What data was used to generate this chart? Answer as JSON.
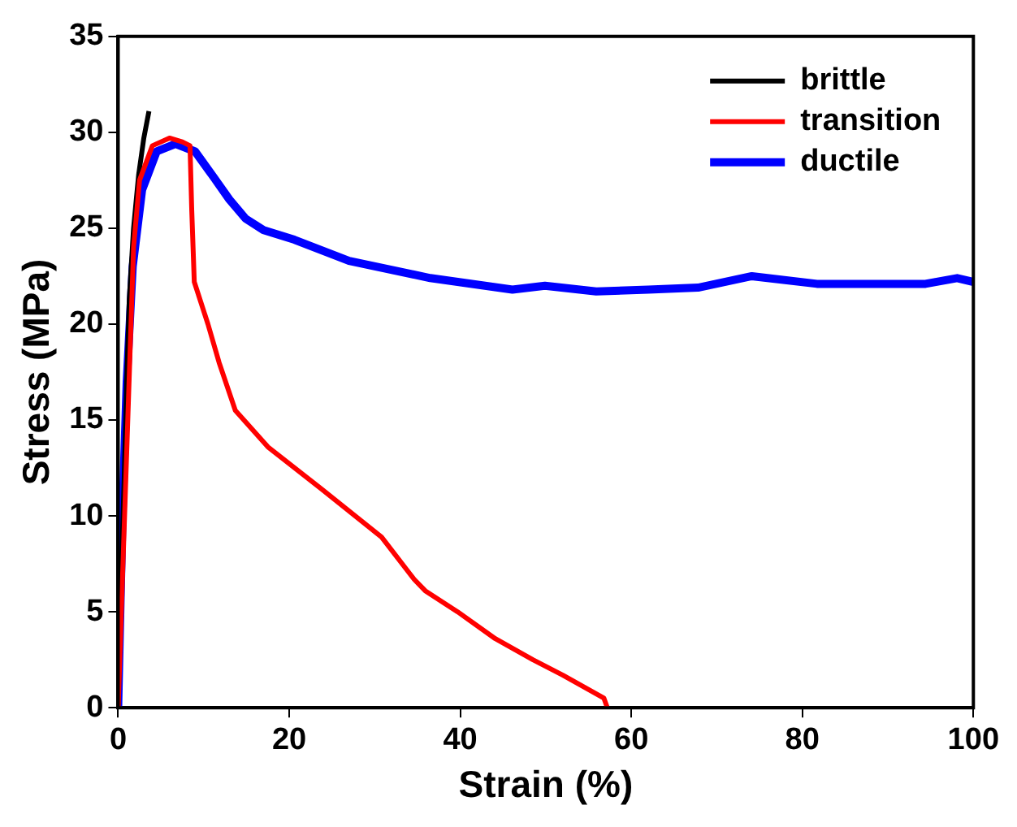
{
  "chart_data": {
    "type": "line",
    "xlabel": "Strain (%)",
    "ylabel": "Stress (MPa)",
    "xlim": [
      0,
      100
    ],
    "ylim": [
      0,
      35
    ],
    "xticks": [
      0,
      20,
      40,
      60,
      80,
      100
    ],
    "yticks": [
      0,
      5,
      10,
      15,
      20,
      25,
      30,
      35
    ],
    "grid": false,
    "legend": "top right",
    "marker": "none",
    "line_style": "solid",
    "series": [
      {
        "name": "brittle",
        "color": "#000000",
        "x": [
          0,
          0.3,
          0.7,
          1.0,
          1.3,
          1.8,
          2.4,
          3.0,
          3.6
        ],
        "values": [
          0,
          6,
          11.9,
          17,
          21.3,
          25,
          27.8,
          29.7,
          31.1
        ]
      },
      {
        "name": "transition",
        "color": "#ff0000",
        "x": [
          0,
          0.6,
          1.2,
          1.8,
          2.5,
          4.0,
          6.0,
          7.5,
          8.4,
          8.6,
          8.9,
          10.5,
          11.8,
          13.7,
          17.5,
          23.8,
          30.8,
          34.6,
          35.9,
          39.7,
          44.1,
          48.5,
          52,
          56.8,
          57.2
        ],
        "values": [
          0,
          8,
          16,
          24,
          27.5,
          29.3,
          29.7,
          29.5,
          29.3,
          26,
          22.2,
          20,
          18,
          15.5,
          13.6,
          11.4,
          8.9,
          6.7,
          6.1,
          5.0,
          3.6,
          2.5,
          1.7,
          0.5,
          0
        ]
      },
      {
        "name": "ductile",
        "color": "#0000ff",
        "x": [
          0,
          0.5,
          1.0,
          1.7,
          2.8,
          4.5,
          6.7,
          9,
          11.1,
          13,
          14.9,
          17,
          20.6,
          27,
          36.5,
          46.1,
          49.9,
          55.9,
          62,
          67.8,
          74.1,
          81.7,
          88,
          94.4,
          98.1,
          100
        ],
        "values": [
          0,
          10,
          17,
          23,
          27,
          29,
          29.4,
          29,
          27.7,
          26.5,
          25.5,
          24.9,
          24.4,
          23.3,
          22.4,
          21.8,
          22.0,
          21.7,
          21.8,
          21.9,
          22.5,
          22.1,
          22.1,
          22.1,
          22.4,
          22.2
        ]
      }
    ]
  }
}
